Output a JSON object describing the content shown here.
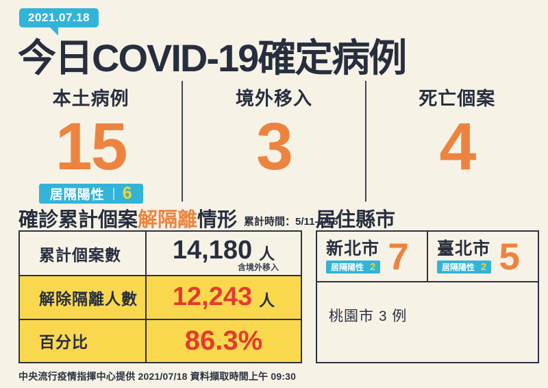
{
  "colors": {
    "background": "#f6f2e6",
    "navy": "#272e3e",
    "cyan": "#32b4d8",
    "orange": "#ec8440",
    "yellow_badge_text": "#f5d32c",
    "yellow_row": "#f9d84e",
    "red": "#e23b30"
  },
  "header": {
    "date_badge": "2021.07.18",
    "title": "今日COVID-19確定病例"
  },
  "stats": {
    "local": {
      "label": "本土病例",
      "value": "15",
      "badge": {
        "label": "居隔陽性",
        "value": "6"
      }
    },
    "imported": {
      "label": "境外移入",
      "value": "3"
    },
    "deaths": {
      "label": "死亡個案",
      "value": "4"
    }
  },
  "isolation": {
    "title_prefix": "確診累計個案",
    "title_highlight": "解隔離",
    "title_suffix": "情形",
    "period": "累計時間：5/11-7/16",
    "rows": [
      {
        "label": "累計個案數",
        "value": "14,180",
        "unit": "人",
        "note": "含境外移入"
      },
      {
        "label": "解除隔離人數",
        "value": "12,243",
        "unit": "人"
      },
      {
        "label": "百分比",
        "value": "86.3%",
        "unit": ""
      }
    ]
  },
  "residence": {
    "title": "居住縣市",
    "cities": [
      {
        "name": "新北市",
        "value": "7",
        "badge": {
          "label": "居隔陽性",
          "value": "2"
        }
      },
      {
        "name": "臺北市",
        "value": "5",
        "badge": {
          "label": "居隔陽性",
          "value": "2"
        }
      }
    ],
    "note": "桃園市 3 例"
  },
  "footer": {
    "source": "中央流行疫情指揮中心提供 2021/07/18 資料擷取時間上午 09:30"
  }
}
